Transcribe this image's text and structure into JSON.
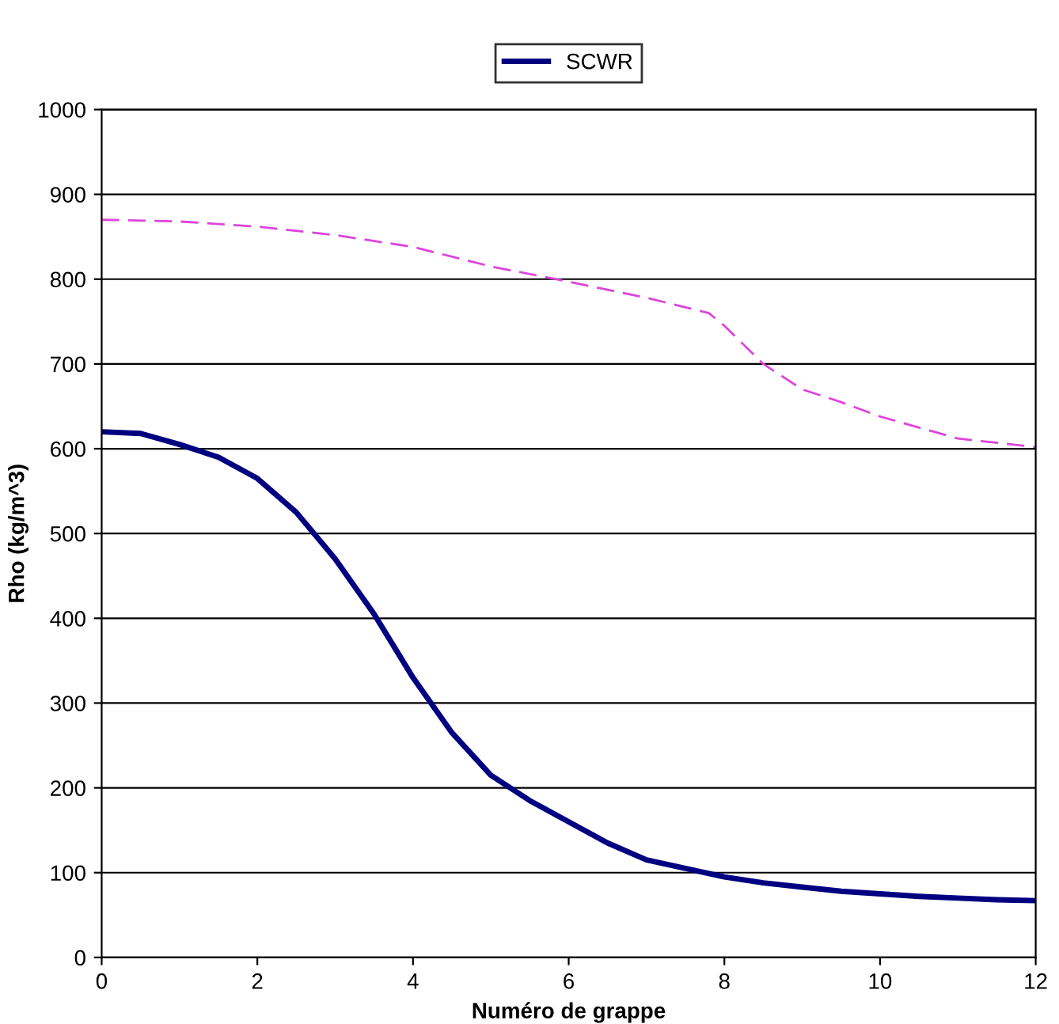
{
  "chart_data": {
    "type": "line",
    "xlabel": "Numéro de grappe",
    "ylabel": "Rho (kg/m^3)",
    "xlim": [
      0,
      12
    ],
    "ylim": [
      0,
      1000
    ],
    "xticks": [
      0,
      2,
      4,
      6,
      8,
      10,
      12
    ],
    "yticks": [
      0,
      100,
      200,
      300,
      400,
      500,
      600,
      700,
      800,
      900,
      1000
    ],
    "grid": "y",
    "legend": "top",
    "marker": "none",
    "series": [
      {
        "name": "SCWR",
        "color": "#000080",
        "line_style": "solid",
        "x": [
          0,
          0.5,
          1,
          1.5,
          2,
          2.5,
          3,
          3.5,
          4,
          4.5,
          5,
          5.5,
          6,
          6.5,
          7,
          7.5,
          8,
          8.5,
          9,
          9.5,
          10,
          10.5,
          11,
          11.5,
          12
        ],
        "values": [
          620,
          618,
          605,
          590,
          565,
          525,
          470,
          405,
          330,
          265,
          215,
          185,
          160,
          135,
          115,
          105,
          95,
          88,
          83,
          78,
          75,
          72,
          70,
          68,
          67
        ]
      },
      {
        "color": "#dd44dd",
        "line_style": "dashed",
        "x": [
          0,
          1,
          2,
          3,
          4,
          5,
          6,
          7,
          7.8,
          8,
          8.5,
          9,
          9.5,
          10,
          11,
          12
        ],
        "values": [
          870,
          868,
          862,
          852,
          838,
          815,
          797,
          778,
          760,
          745,
          700,
          670,
          655,
          638,
          612,
          602
        ]
      }
    ]
  }
}
